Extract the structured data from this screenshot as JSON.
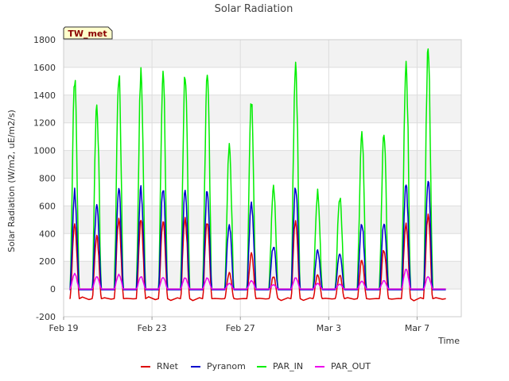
{
  "chart_data": {
    "type": "line",
    "title": "Solar Radiation",
    "xlabel": "Time",
    "ylabel": "Solar Radiation (W/m2, uE/m2/s)",
    "station_label": "TW_met",
    "ylim": [
      -200,
      1800
    ],
    "yticks": [
      -200,
      0,
      200,
      400,
      600,
      800,
      1000,
      1200,
      1400,
      1600,
      1800
    ],
    "xlim": [
      "2025-02-19",
      "2025-03-09"
    ],
    "xtick_labels": [
      "Feb 19",
      "Feb 23",
      "Feb 27",
      "Mar 3",
      "Mar 7"
    ],
    "xtick_dates": [
      "2025-02-19",
      "2025-02-23",
      "2025-02-27",
      "2025-03-03",
      "2025-03-07"
    ],
    "grid": true,
    "legend_position": "bottom",
    "background_bands": true,
    "series": [
      {
        "name": "RNet",
        "color": "#dd0000",
        "night_value": -70,
        "daily_peaks": [
          {
            "date": "2025-02-19",
            "peak": 470
          },
          {
            "date": "2025-02-20",
            "peak": 380
          },
          {
            "date": "2025-02-21",
            "peak": 490
          },
          {
            "date": "2025-02-22",
            "peak": 490
          },
          {
            "date": "2025-02-23",
            "peak": 490
          },
          {
            "date": "2025-02-24",
            "peak": 500
          },
          {
            "date": "2025-02-25",
            "peak": 490
          },
          {
            "date": "2025-02-26",
            "peak": 120
          },
          {
            "date": "2025-02-27",
            "peak": 250
          },
          {
            "date": "2025-02-28",
            "peak": 90
          },
          {
            "date": "2025-03-01",
            "peak": 500
          },
          {
            "date": "2025-03-02",
            "peak": 100
          },
          {
            "date": "2025-03-03",
            "peak": 100
          },
          {
            "date": "2025-03-04",
            "peak": 210
          },
          {
            "date": "2025-03-05",
            "peak": 280
          },
          {
            "date": "2025-03-06",
            "peak": 470
          },
          {
            "date": "2025-03-07",
            "peak": 530
          }
        ]
      },
      {
        "name": "Pyranom",
        "color": "#0000cc",
        "night_value": -5,
        "daily_peaks": [
          {
            "date": "2025-02-19",
            "peak": 700
          },
          {
            "date": "2025-02-20",
            "peak": 600
          },
          {
            "date": "2025-02-21",
            "peak": 710
          },
          {
            "date": "2025-02-22",
            "peak": 720
          },
          {
            "date": "2025-02-23",
            "peak": 720
          },
          {
            "date": "2025-02-24",
            "peak": 720
          },
          {
            "date": "2025-02-25",
            "peak": 720
          },
          {
            "date": "2025-02-26",
            "peak": 460
          },
          {
            "date": "2025-02-27",
            "peak": 610
          },
          {
            "date": "2025-02-28",
            "peak": 310
          },
          {
            "date": "2025-03-01",
            "peak": 740
          },
          {
            "date": "2025-03-02",
            "peak": 280
          },
          {
            "date": "2025-03-03",
            "peak": 260
          },
          {
            "date": "2025-03-04",
            "peak": 470
          },
          {
            "date": "2025-03-05",
            "peak": 480
          },
          {
            "date": "2025-03-06",
            "peak": 740
          },
          {
            "date": "2025-03-07",
            "peak": 790
          }
        ]
      },
      {
        "name": "PAR_IN",
        "color": "#00ee00",
        "night_value": 0,
        "daily_peaks": [
          {
            "date": "2025-02-19",
            "peak": 1520
          },
          {
            "date": "2025-02-20",
            "peak": 1330
          },
          {
            "date": "2025-02-21",
            "peak": 1540
          },
          {
            "date": "2025-02-22",
            "peak": 1550
          },
          {
            "date": "2025-02-23",
            "peak": 1550
          },
          {
            "date": "2025-02-24",
            "peak": 1560
          },
          {
            "date": "2025-02-25",
            "peak": 1580
          },
          {
            "date": "2025-02-26",
            "peak": 1020
          },
          {
            "date": "2025-02-27",
            "peak": 1350
          },
          {
            "date": "2025-02-28",
            "peak": 750
          },
          {
            "date": "2025-03-01",
            "peak": 1640
          },
          {
            "date": "2025-03-02",
            "peak": 700
          },
          {
            "date": "2025-03-03",
            "peak": 660
          },
          {
            "date": "2025-03-04",
            "peak": 1100
          },
          {
            "date": "2025-03-05",
            "peak": 1110
          },
          {
            "date": "2025-03-06",
            "peak": 1640
          },
          {
            "date": "2025-03-07",
            "peak": 1720
          }
        ]
      },
      {
        "name": "PAR_OUT",
        "color": "#ee00ee",
        "night_value": 0,
        "daily_peaks": [
          {
            "date": "2025-02-19",
            "peak": 110
          },
          {
            "date": "2025-02-20",
            "peak": 90
          },
          {
            "date": "2025-02-21",
            "peak": 105
          },
          {
            "date": "2025-02-22",
            "peak": 90
          },
          {
            "date": "2025-02-23",
            "peak": 85
          },
          {
            "date": "2025-02-24",
            "peak": 80
          },
          {
            "date": "2025-02-25",
            "peak": 80
          },
          {
            "date": "2025-02-26",
            "peak": 40
          },
          {
            "date": "2025-02-27",
            "peak": 60
          },
          {
            "date": "2025-02-28",
            "peak": 30
          },
          {
            "date": "2025-03-01",
            "peak": 80
          },
          {
            "date": "2025-03-02",
            "peak": 40
          },
          {
            "date": "2025-03-03",
            "peak": 35
          },
          {
            "date": "2025-03-04",
            "peak": 55
          },
          {
            "date": "2025-03-05",
            "peak": 60
          },
          {
            "date": "2025-03-06",
            "peak": 140
          },
          {
            "date": "2025-03-07",
            "peak": 90
          }
        ]
      }
    ]
  }
}
